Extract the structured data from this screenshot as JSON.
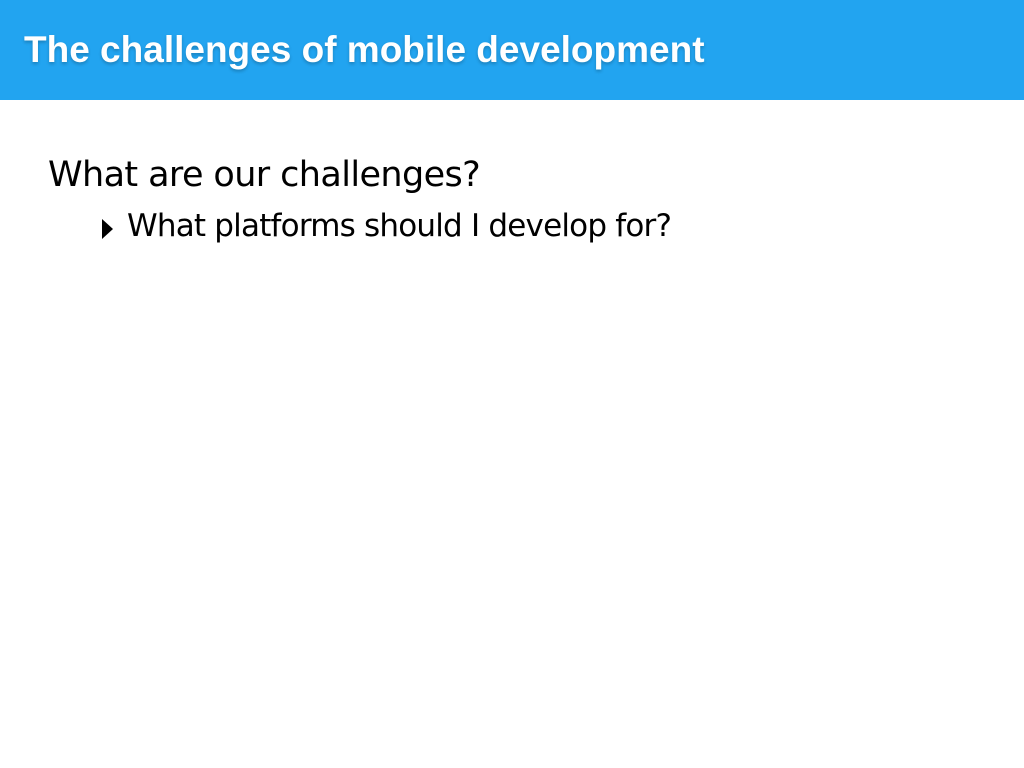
{
  "slide": {
    "title": "The challenges of mobile development",
    "heading": "What are our challenges?",
    "bullets": [
      {
        "text": "What platforms should I develop for?"
      }
    ]
  },
  "colors": {
    "title_bar": "#22a4f0",
    "title_text": "#ffffff",
    "body_text": "#000000",
    "background": "#ffffff"
  },
  "icons": {
    "bullet": "triangle-right-icon"
  }
}
